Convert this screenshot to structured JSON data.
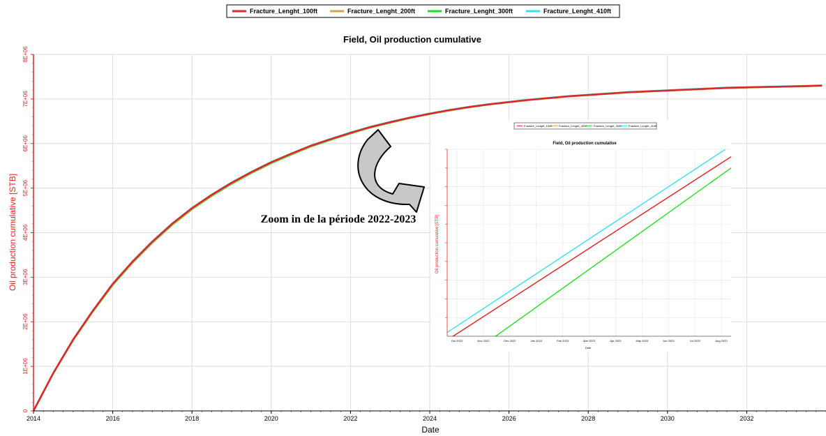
{
  "chart_data": [
    {
      "type": "line",
      "title": "Field, Oil production cumulative",
      "xlabel": "Date",
      "ylabel": "Oil production cumulative [STB]",
      "xlim": [
        2014,
        2034
      ],
      "ylim": [
        0,
        8000000
      ],
      "x_ticks": [
        "2014",
        "2016",
        "2018",
        "2020",
        "2022",
        "2024",
        "2026",
        "2028",
        "2030",
        "2032"
      ],
      "y_ticks": [
        "0",
        "1E+06",
        "2E+06",
        "3E+06",
        "4E+06",
        "5E+06",
        "6E+06",
        "7E+06",
        "8E+06"
      ],
      "grid": true,
      "legend_position": "top-center",
      "x": [
        2014,
        2014.5,
        2015,
        2015.5,
        2016,
        2016.5,
        2017,
        2017.5,
        2018,
        2018.5,
        2019,
        2019.5,
        2020,
        2020.5,
        2021,
        2021.5,
        2022,
        2022.5,
        2023,
        2023.5,
        2024,
        2024.5,
        2025,
        2025.5,
        2026,
        2026.5,
        2027,
        2027.5,
        2028,
        2028.5,
        2029,
        2029.5,
        2030,
        2030.5,
        2031,
        2031.5,
        2032,
        2032.5,
        2033,
        2033.5,
        2033.9
      ],
      "series": [
        {
          "name": "Fracture_Lenght_100ft",
          "color": "#e0252b",
          "values": [
            0,
            850000,
            1600000,
            2250000,
            2850000,
            3350000,
            3800000,
            4200000,
            4550000,
            4850000,
            5120000,
            5360000,
            5580000,
            5770000,
            5950000,
            6100000,
            6240000,
            6370000,
            6480000,
            6580000,
            6670000,
            6750000,
            6820000,
            6880000,
            6930000,
            6980000,
            7020000,
            7060000,
            7090000,
            7120000,
            7150000,
            7170000,
            7190000,
            7210000,
            7230000,
            7250000,
            7260000,
            7270000,
            7280000,
            7290000,
            7300000
          ]
        },
        {
          "name": "Fracture_Lenght_200ft",
          "color": "#d4a24c",
          "values": [
            0,
            845000,
            1592000,
            2240000,
            2838000,
            3338000,
            3788000,
            4188000,
            4538000,
            4840000,
            5110000,
            5352000,
            5572000,
            5763000,
            5944000,
            6095000,
            6235000,
            6366000,
            6476000,
            6577000,
            6667000,
            6747000,
            6818000,
            6878000,
            6928000,
            6978000,
            7018000,
            7058000,
            7088000,
            7118000,
            7148000,
            7168000,
            7188000,
            7208000,
            7228000,
            7248000,
            7258000,
            7268000,
            7278000,
            7288000,
            7298000
          ]
        },
        {
          "name": "Fracture_Lenght_300ft",
          "color": "#22dd22",
          "values": [
            0,
            840000,
            1585000,
            2230000,
            2825000,
            3325000,
            3775000,
            4175000,
            4525000,
            4825000,
            5095000,
            5338000,
            5558000,
            5750000,
            5932000,
            6084000,
            6225000,
            6357000,
            6468000,
            6570000,
            6661000,
            6742000,
            6814000,
            6875000,
            6926000,
            6976000,
            7016000,
            7056000,
            7086000,
            7116000,
            7146000,
            7166000,
            7186000,
            7206000,
            7226000,
            7246000,
            7256000,
            7266000,
            7276000,
            7286000,
            7296000
          ]
        },
        {
          "name": "Fracture_Lenght_410ft",
          "color": "#33e0ee",
          "values": [
            0,
            852000,
            1603000,
            2254000,
            2855000,
            3356000,
            3806000,
            4206000,
            4556000,
            4856000,
            5126000,
            5366000,
            5586000,
            5776000,
            5956000,
            6106000,
            6246000,
            6376000,
            6486000,
            6586000,
            6676000,
            6756000,
            6826000,
            6886000,
            6936000,
            6986000,
            7026000,
            7066000,
            7096000,
            7126000,
            7156000,
            7176000,
            7196000,
            7216000,
            7236000,
            7256000,
            7266000,
            7276000,
            7286000,
            7296000,
            7306000
          ]
        }
      ]
    },
    {
      "type": "line",
      "title": "Field, Oil production cumulative",
      "xlabel": "Date",
      "ylabel": "Oil production cumulative [STB]",
      "x_ticks": [
        "Oct 2022",
        "Nov 2022",
        "Dec 2022",
        "Jan 2023",
        "Feb 2023",
        "Mar 2023",
        "Apr 2023",
        "May 2023",
        "Jun 2023",
        "Jul 2023",
        "Aug 2023"
      ],
      "grid": true,
      "legend_position": "top-center",
      "x": [
        0,
        1
      ],
      "series": [
        {
          "name": "Fracture_Lenght_100ft",
          "color": "#e0252b",
          "values": [
            -0.02,
            0.96
          ]
        },
        {
          "name": "Fracture_Lenght_200ft",
          "color": "#d4a24c",
          "values": [
            -0.02,
            0.96
          ]
        },
        {
          "name": "Fracture_Lenght_300ft",
          "color": "#22dd22",
          "values": [
            -0.12,
            0.9
          ]
        },
        {
          "name": "Fracture_Lenght_410ft",
          "color": "#33e0ee",
          "values": [
            0.02,
            1.02
          ]
        }
      ]
    }
  ],
  "annotation": "Zoom in de la période 2022-2023"
}
